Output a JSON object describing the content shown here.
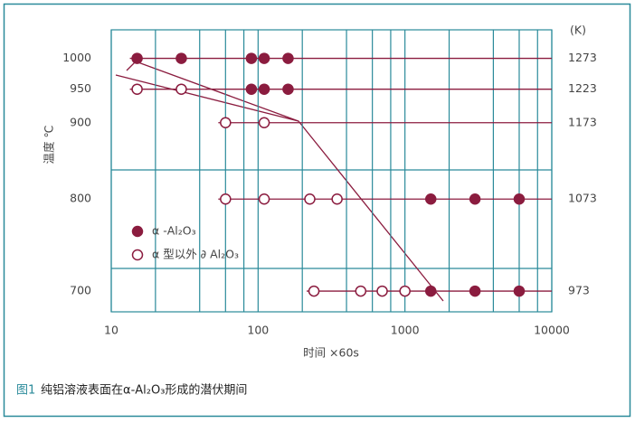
{
  "chart_data": {
    "type": "scatter",
    "y_axis_label": "温度 ℃",
    "x_axis_label": "时间 ×60s",
    "y2_axis_label": "(K)",
    "xscale": "log",
    "yscale": "reciprocal-absolute",
    "xlim": [
      10,
      10000
    ],
    "xticks": [
      10,
      100,
      1000,
      10000
    ],
    "ylim": [
      680,
      1050
    ],
    "yticks": [
      1000,
      950,
      900,
      800,
      700
    ],
    "y2lim": [
      953,
      1323
    ],
    "y2ticks": [
      1273,
      1223,
      1173,
      1073,
      973
    ],
    "series": [
      {
        "name": "α -Al₂O₃",
        "color": "#8b1c3f",
        "filled": true,
        "x": [
          15,
          30,
          90,
          110,
          160,
          90,
          110,
          160,
          1500,
          3000,
          6000,
          1500,
          3000,
          6000
        ],
        "values": [
          1000,
          1000,
          1000,
          1000,
          1000,
          950,
          950,
          950,
          800,
          800,
          800,
          700,
          700,
          700
        ]
      },
      {
        "name": "α 型以外 ∂ Al₂O₃",
        "color": "#8b1c3f",
        "filled": false,
        "x": [
          15,
          30,
          60,
          110,
          60,
          110,
          225,
          345,
          240,
          500,
          700,
          1000
        ],
        "values": [
          950,
          950,
          900,
          900,
          800,
          800,
          800,
          800,
          700,
          700,
          700,
          700
        ]
      }
    ]
  },
  "caption": {
    "label": "图1",
    "text": "纯铝溶液表面在α-Al₂O₃形成的潜伏期间"
  }
}
